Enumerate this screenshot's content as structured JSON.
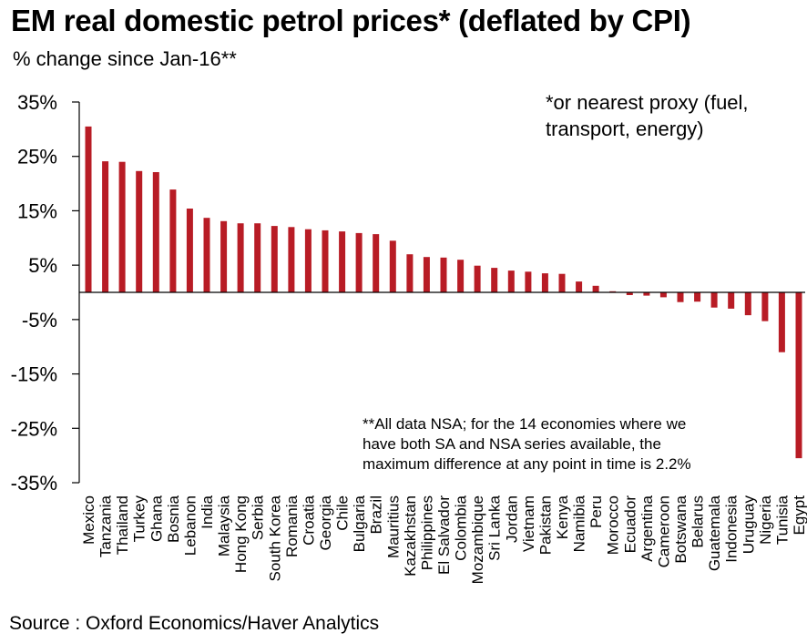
{
  "header": {
    "title": "EM real domestic petrol prices* (deflated by CPI)",
    "subtitle": "% change since Jan-16**"
  },
  "notes": {
    "proxy_note": "*or nearest proxy (fuel,\ntransport, energy)",
    "nsa_note": "**All data NSA; for the 14 economies where we\nhave both SA and NSA series available, the\nmaximum  difference at any point in time is 2.2%"
  },
  "footer": {
    "source": "Source : Oxford Economics/Haver Analytics"
  },
  "chart_data": {
    "type": "bar",
    "title": "EM real domestic petrol prices* (deflated by CPI)",
    "subtitle": "% change since Jan-16**",
    "xlabel": "",
    "ylabel": "",
    "ylim": [
      -35,
      35
    ],
    "yticks": [
      35,
      25,
      15,
      5,
      -5,
      -15,
      -25,
      -35
    ],
    "ytick_labels": [
      "35%",
      "25%",
      "15%",
      "5%",
      "-5%",
      "-15%",
      "-25%",
      "-35%"
    ],
    "grid": false,
    "legend": "none",
    "bar_color": "#b81c25",
    "categories": [
      "Mexico",
      "Tanzania",
      "Thailand",
      "Turkey",
      "Ghana",
      "Bosnia",
      "Lebanon",
      "India",
      "Malaysia",
      "Hong Kong",
      "Serbia",
      "South Korea",
      "Romania",
      "Croatia",
      "Georgia",
      "Chile",
      "Bulgaria",
      "Brazil",
      "Mauritius",
      "Kazakhstan",
      "Philippines",
      "El Salvador",
      "Colombia",
      "Mozambique",
      "Sri Lanka",
      "Jordan",
      "Vietnam",
      "Pakistan",
      "Kenya",
      "Namibia",
      "Peru",
      "Morocco",
      "Ecuador",
      "Argentina",
      "Cameroon",
      "Botswana",
      "Belarus",
      "Guatemala",
      "Indonesia",
      "Uruguay",
      "Nigeria",
      "Tunisia",
      "Egypt"
    ],
    "values": [
      30.5,
      24.1,
      24.0,
      22.3,
      22.1,
      18.9,
      15.4,
      13.7,
      13.1,
      12.7,
      12.7,
      12.2,
      12.0,
      11.6,
      11.4,
      11.2,
      10.9,
      10.7,
      9.5,
      7.0,
      6.5,
      6.4,
      6.0,
      4.9,
      4.5,
      4.0,
      3.8,
      3.5,
      3.4,
      2.0,
      1.2,
      0.2,
      -0.5,
      -0.6,
      -0.9,
      -1.8,
      -1.7,
      -2.8,
      -3.0,
      -4.2,
      -5.3,
      -11.0,
      -30.5
    ]
  }
}
